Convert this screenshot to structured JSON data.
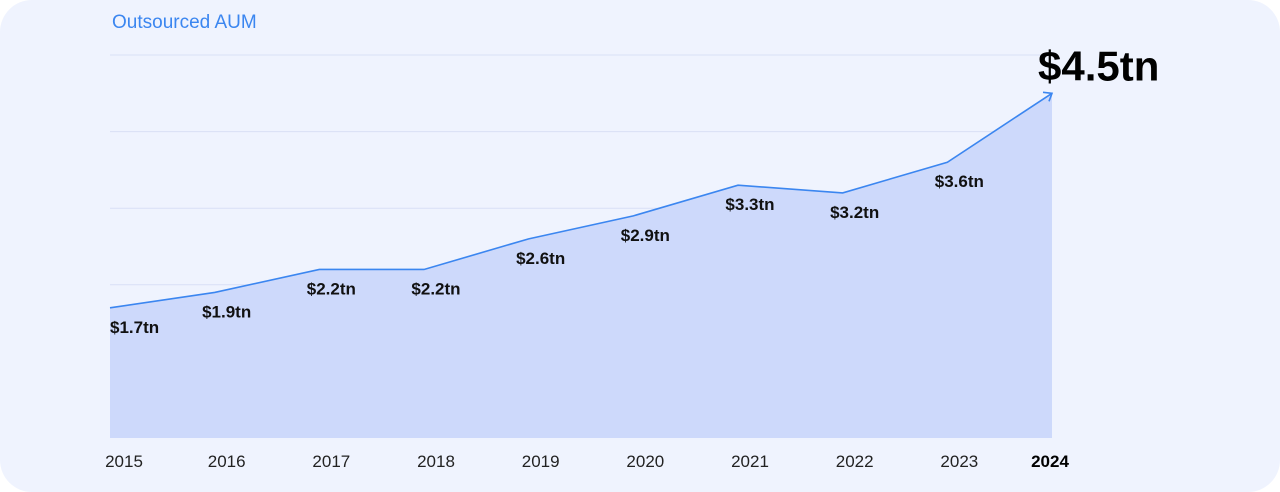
{
  "chart_data": {
    "type": "area",
    "title": "Outsourced AUM",
    "categories": [
      "2015",
      "2016",
      "2017",
      "2018",
      "2019",
      "2020",
      "2021",
      "2022",
      "2023",
      "2024"
    ],
    "values": [
      1.7,
      1.9,
      2.2,
      2.2,
      2.6,
      2.9,
      3.3,
      3.2,
      3.6,
      4.5
    ],
    "data_labels": [
      "$1.7tn",
      "$1.9tn",
      "$2.2tn",
      "$2.2tn",
      "$2.6tn",
      "$2.9tn",
      "$3.3tn",
      "$3.2tn",
      "$3.6tn",
      "$4.5tn"
    ],
    "unit": "USD trillion",
    "ylim": [
      0,
      5
    ],
    "gridlines": [
      1,
      2,
      3,
      4,
      5
    ],
    "grid": true,
    "xlabel": "",
    "ylabel": "",
    "colors": {
      "line": "#3b86f0",
      "fill": "#cdd9fb",
      "grid": "#d9e0f5",
      "title": "#3b86f0"
    }
  }
}
